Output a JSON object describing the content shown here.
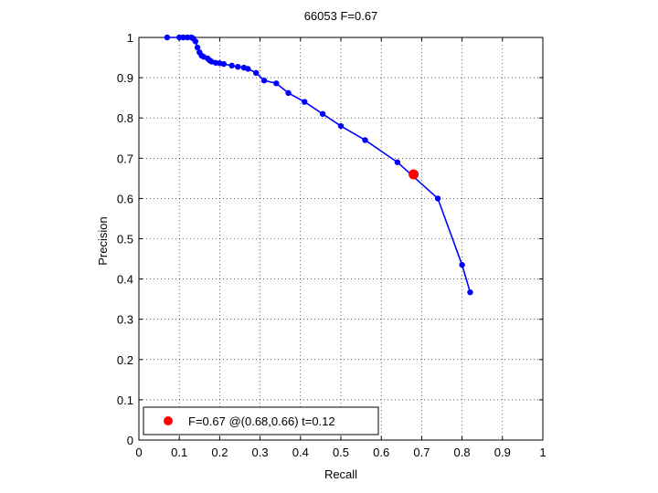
{
  "chart_data": {
    "type": "line",
    "title": "66053 F=0.67",
    "xlabel": "Recall",
    "ylabel": "Precision",
    "xlim": [
      0,
      1
    ],
    "ylim": [
      0,
      1
    ],
    "xticks": [
      "0",
      "0.1",
      "0.2",
      "0.3",
      "0.4",
      "0.5",
      "0.6",
      "0.7",
      "0.8",
      "0.9",
      "1"
    ],
    "yticks": [
      "0",
      "0.1",
      "0.2",
      "0.3",
      "0.4",
      "0.5",
      "0.6",
      "0.7",
      "0.8",
      "0.9",
      "1"
    ],
    "grid": true,
    "legend_position": "bottom-left",
    "series": [
      {
        "color": "#0000ff",
        "x": [
          0.07,
          0.1,
          0.11,
          0.12,
          0.13,
          0.135,
          0.14,
          0.145,
          0.15,
          0.155,
          0.16,
          0.17,
          0.175,
          0.18,
          0.19,
          0.2,
          0.21,
          0.23,
          0.245,
          0.26,
          0.27,
          0.29,
          0.31,
          0.34,
          0.37,
          0.41,
          0.455,
          0.5,
          0.56,
          0.64,
          0.74,
          0.8,
          0.82
        ],
        "y": [
          1.0,
          1.0,
          1.0,
          1.0,
          1.0,
          0.997,
          0.99,
          0.975,
          0.963,
          0.955,
          0.952,
          0.948,
          0.943,
          0.94,
          0.937,
          0.936,
          0.934,
          0.93,
          0.927,
          0.925,
          0.922,
          0.912,
          0.893,
          0.886,
          0.862,
          0.84,
          0.81,
          0.78,
          0.745,
          0.69,
          0.6,
          0.435,
          0.367
        ]
      }
    ],
    "best_point": {
      "x": 0.68,
      "y": 0.66,
      "color": "#ff0000",
      "legend_label": "F=0.67 @(0.68,0.66) t=0.12"
    }
  }
}
